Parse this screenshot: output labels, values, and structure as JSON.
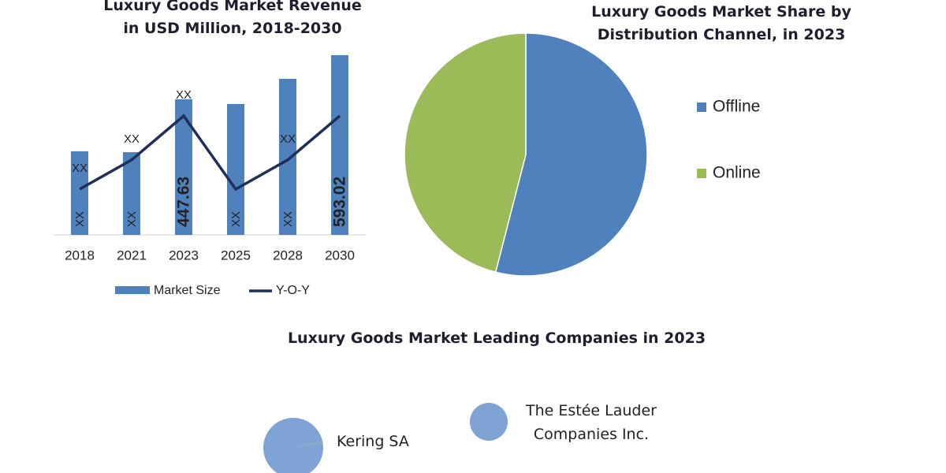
{
  "chart_data": [
    {
      "type": "bar",
      "title": "Luxury Goods Market Revenue in USD Million, 2018-2030",
      "categories": [
        "2018",
        "2021",
        "2023",
        "2025",
        "2028",
        "2030"
      ],
      "series": [
        {
          "name": "Market Size",
          "type": "bar",
          "color": "#4f81bd",
          "values": [
            276,
            273,
            447.63,
            432,
            515,
            593.02
          ],
          "value_labels": [
            "XX",
            "XX",
            "447.63",
            "XX",
            "XX",
            "593.02"
          ]
        },
        {
          "name": "Y-O-Y",
          "type": "line",
          "color": "#1f2f5c",
          "values": [
            5,
            7,
            10,
            5,
            7,
            10
          ],
          "value_labels": [
            "XX",
            "XX",
            "XX",
            null,
            "XX",
            null
          ]
        }
      ]
    },
    {
      "type": "pie",
      "title": "Luxury Goods Market Share by Distribution Channel, in 2023",
      "categories": [
        "Offline",
        "Online"
      ],
      "values": [
        54,
        46
      ],
      "colors": [
        "#4f81bd",
        "#9bbb59"
      ]
    },
    {
      "type": "bubble",
      "title": "Luxury Goods Market Leading Companies in 2023",
      "categories": [
        "Kering SA",
        "The Estée Lauder Companies Inc."
      ],
      "sizes": [
        38,
        24
      ],
      "color": "#7ea3d4"
    }
  ]
}
